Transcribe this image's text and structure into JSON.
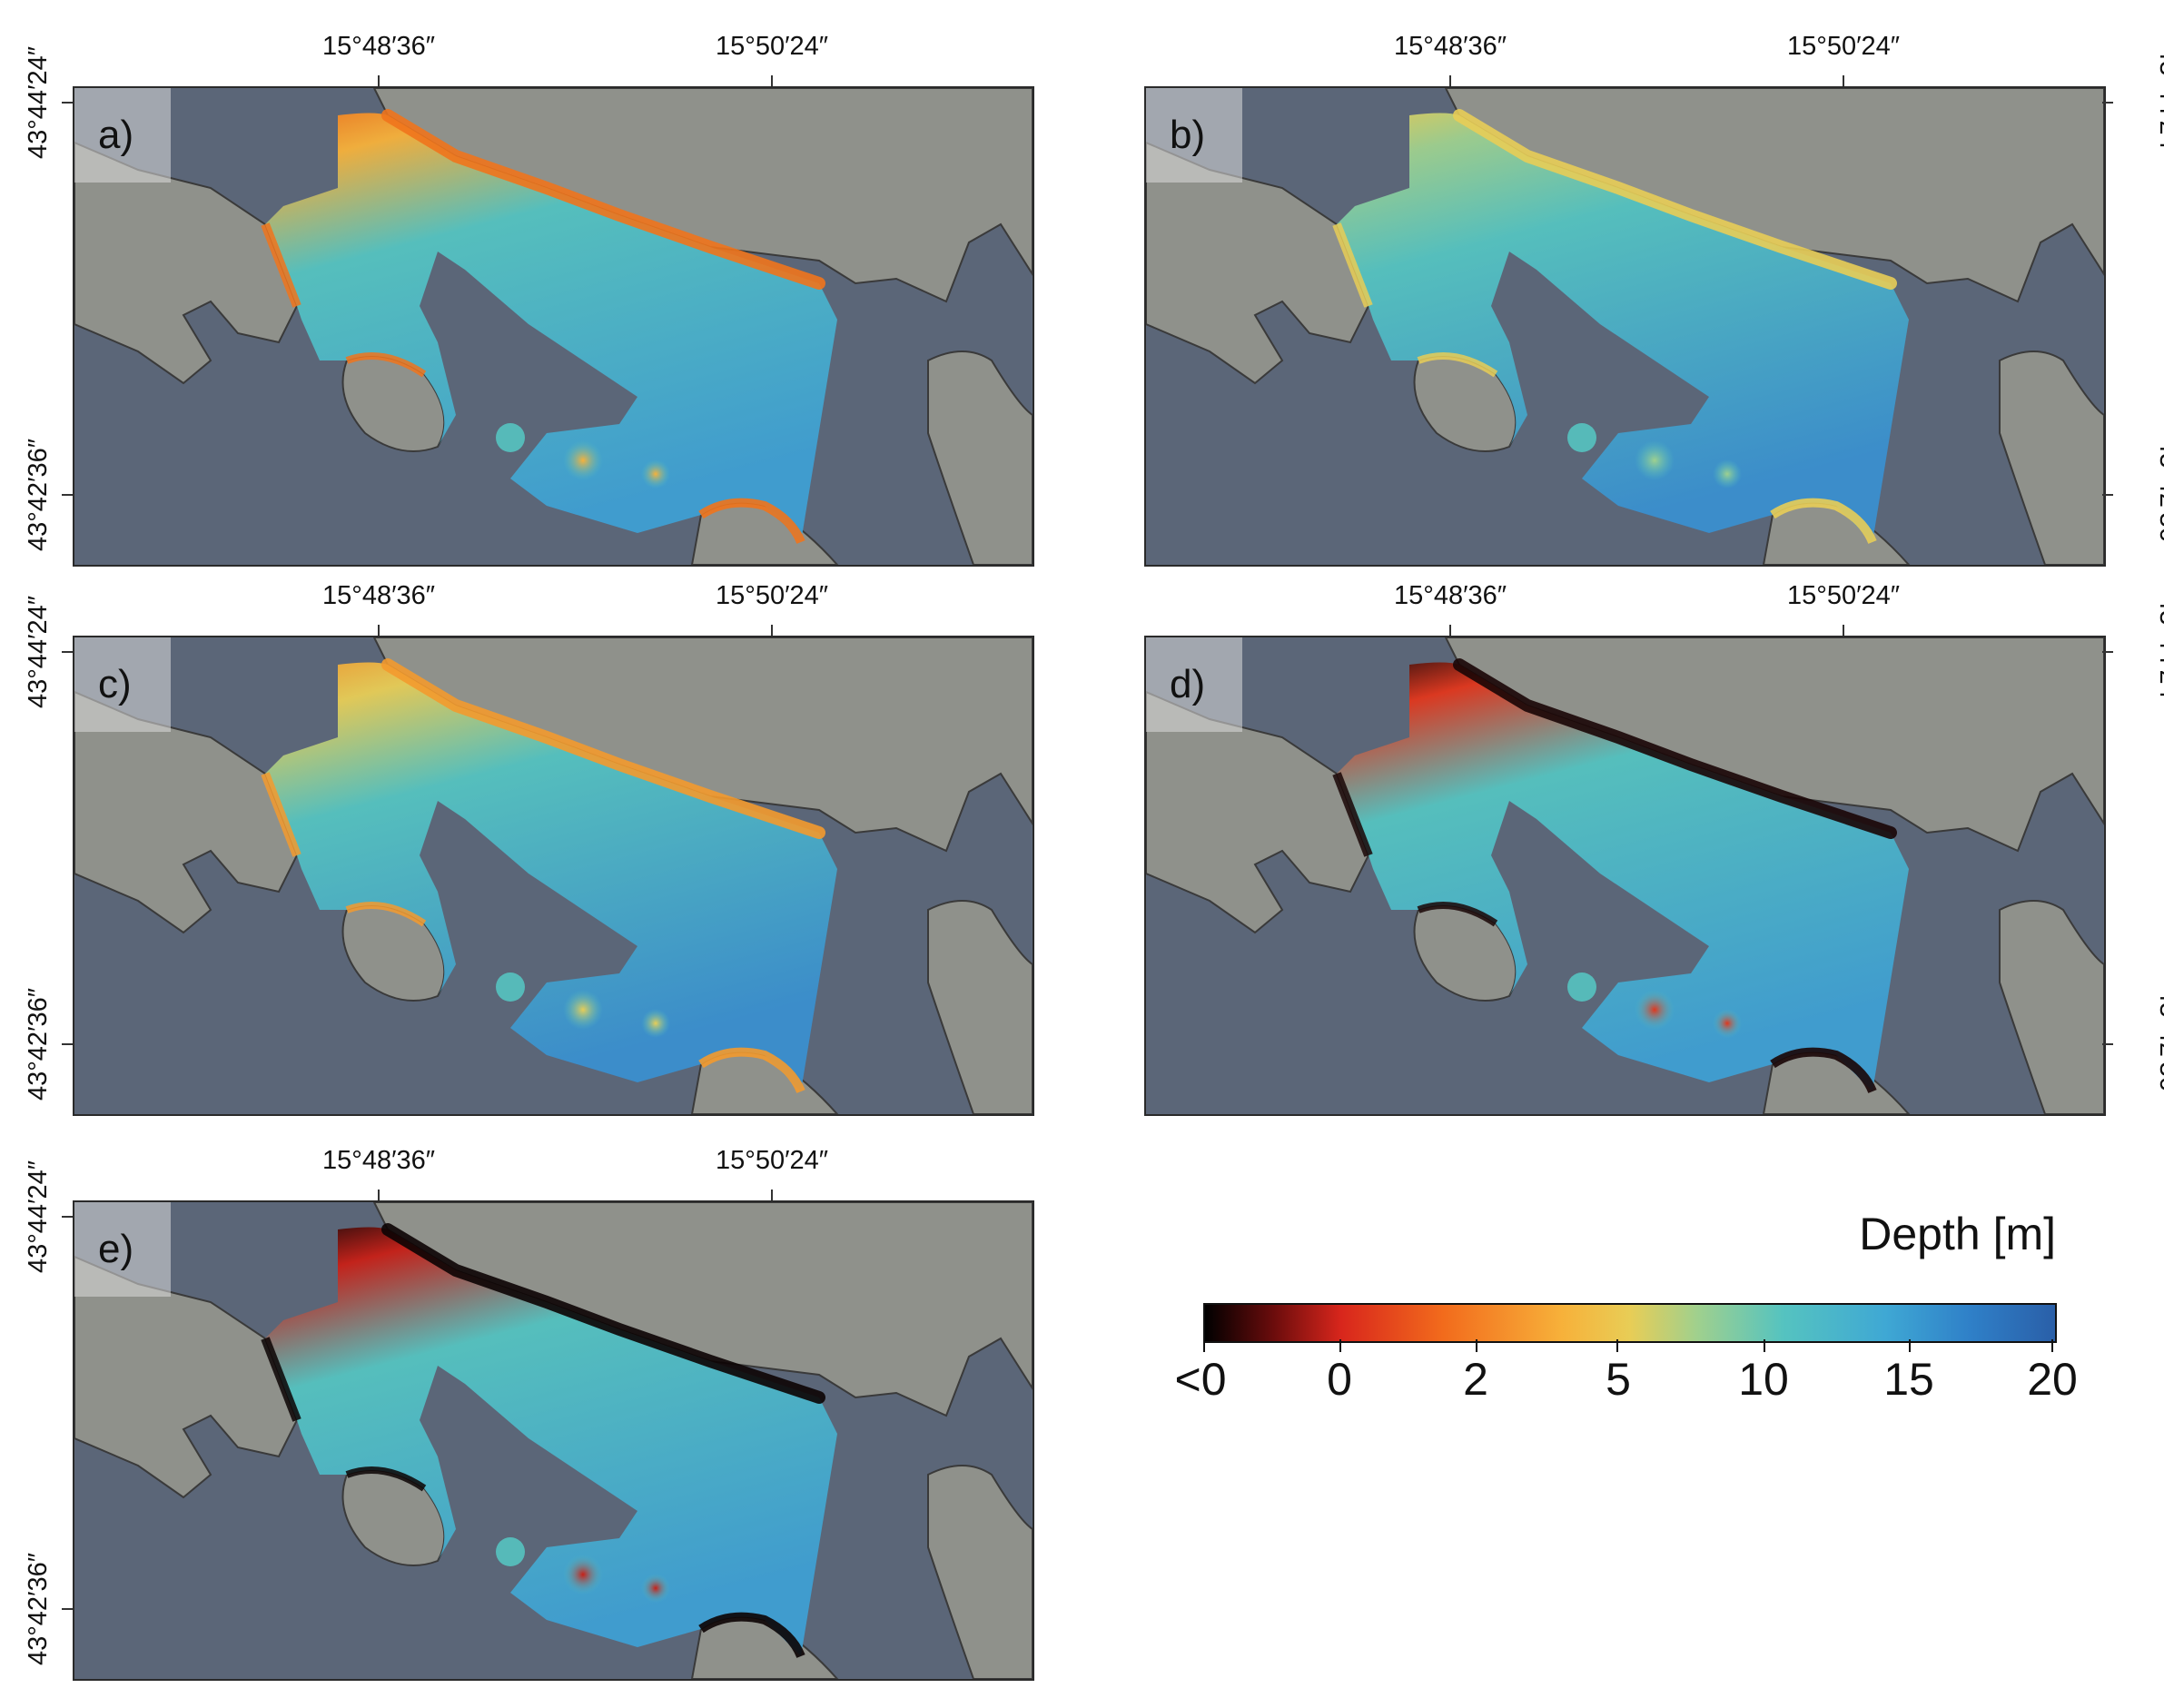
{
  "panels": [
    {
      "id": "a",
      "label": "a)"
    },
    {
      "id": "b",
      "label": "b)"
    },
    {
      "id": "c",
      "label": "c)"
    },
    {
      "id": "d",
      "label": "d)"
    },
    {
      "id": "e",
      "label": "e)"
    }
  ],
  "axes": {
    "lon_labels": [
      "15°48′36″",
      "15°50′24″"
    ],
    "lat_labels": [
      "43°44′24″",
      "43°42′36″"
    ]
  },
  "legend": {
    "title": "Depth [m]",
    "tick_labels": [
      "<0",
      "0",
      "2",
      "5",
      "10",
      "15",
      "20"
    ]
  },
  "colors": {
    "sea": "#5b6678",
    "land": "#8f918b",
    "coastline": "#3a3a3a",
    "deep": "#2a5fa8",
    "mid": "#55c3c0",
    "shallow": "#e8cd56",
    "very_shallow": "#f26b1c",
    "negative": "#000000"
  }
}
